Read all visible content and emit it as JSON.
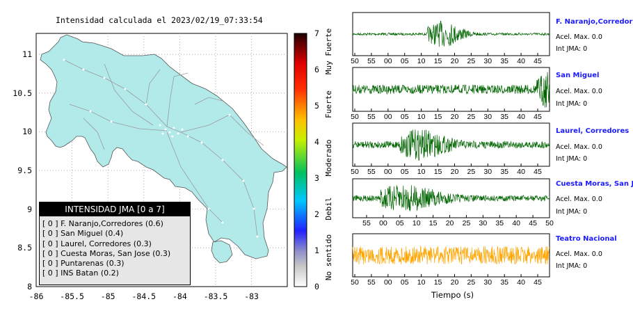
{
  "map": {
    "title": "Intensidad calculada el 2023/02/19_07:33:54",
    "xlim": [
      -86,
      -82.5
    ],
    "ylim": [
      8,
      11.35
    ],
    "xticks": [
      "-86",
      "-85.5",
      "-85",
      "-84.5",
      "-84",
      "-83.5",
      "-83"
    ],
    "yticks": [
      "8",
      "8.5",
      "9",
      "9.5",
      "10",
      "10.5",
      "11"
    ],
    "land_color": "#b2eaea"
  },
  "colorbar": {
    "ticks": [
      "0",
      "1",
      "2",
      "3",
      "4",
      "5",
      "6",
      "7"
    ],
    "labels": [
      "No sentido",
      "Debil",
      "Moderado",
      "Fuerte",
      "Muy Fuerte"
    ]
  },
  "legend": {
    "title": "INTENSIDAD JMA [0 a 7]",
    "items": [
      "[ 0 ]  F. Naranjo,Corredores (0.6)",
      "[ 0 ]  San Miguel (0.4)",
      "[ 0 ]  Laurel, Corredores (0.3)",
      "[ 0 ]  Cuesta Moras, San Jose (0.3)",
      "[ 0 ]  Puntarenas (0.3)",
      "[ 0 ]  INS Batan (0.2)"
    ]
  },
  "traces": {
    "xlabel": "Tiempo (s)",
    "stations": [
      {
        "name": "F. Naranjo,Corredores",
        "accel": "Acel. Max. 0.0",
        "intensity": "Int JMA: 0",
        "color": "#006400",
        "ticks": [
          "50",
          "55",
          "00",
          "05",
          "10",
          "15",
          "20",
          "25",
          "30",
          "35",
          "40",
          "45"
        ]
      },
      {
        "name": "San Miguel",
        "accel": "Acel. Max. 0.0",
        "intensity": "Int JMA: 0",
        "color": "#006400",
        "ticks": [
          "50",
          "55",
          "00",
          "05",
          "10",
          "15",
          "20",
          "25",
          "30",
          "35",
          "40",
          "45"
        ]
      },
      {
        "name": "Laurel, Corredores",
        "accel": "Acel. Max. 0.0",
        "intensity": "Int JMA: 0",
        "color": "#006400",
        "ticks": [
          "50",
          "55",
          "00",
          "05",
          "10",
          "15",
          "20",
          "25",
          "30",
          "35",
          "40",
          "45"
        ]
      },
      {
        "name": "Cuesta Moras, San Jose",
        "accel": "Acel. Max. 0.0",
        "intensity": "Int JMA: 0",
        "color": "#006400",
        "ticks": [
          "55",
          "00",
          "05",
          "10",
          "15",
          "20",
          "25",
          "30",
          "35",
          "40",
          "45",
          "50"
        ]
      },
      {
        "name": "Teatro Nacional",
        "accel": "Acel. Max. 0.0",
        "intensity": "Int JMA: 0",
        "color": "#ffa500",
        "ticks": [
          "50",
          "55",
          "00",
          "05",
          "10",
          "15",
          "20",
          "25",
          "30",
          "35",
          "40",
          "45"
        ]
      }
    ]
  },
  "chart_data": [
    {
      "type": "heatmap",
      "title": "Intensidad calculada el 2023/02/19_07:33:54",
      "xlim": [
        -86,
        -82.5
      ],
      "ylim": [
        8,
        11.35
      ],
      "colorbar_range": [
        0,
        7
      ],
      "colorbar_labels": [
        "No sentido",
        "Debil",
        "Moderado",
        "Fuerte",
        "Muy Fuerte"
      ],
      "legend": [
        "F. Naranjo,Corredores (0.6)",
        "San Miguel (0.4)",
        "Laurel, Corredores (0.3)",
        "Cuesta Moras, San Jose (0.3)",
        "Puntarenas (0.3)",
        "INS Batan (0.2)"
      ]
    },
    {
      "type": "line",
      "xlabel": "Tiempo (s)",
      "series": [
        {
          "name": "F. Naranjo,Corredores"
        },
        {
          "name": "San Miguel"
        },
        {
          "name": "Laurel, Corredores"
        },
        {
          "name": "Cuesta Moras, San Jose"
        },
        {
          "name": "Teatro Nacional"
        }
      ]
    }
  ]
}
